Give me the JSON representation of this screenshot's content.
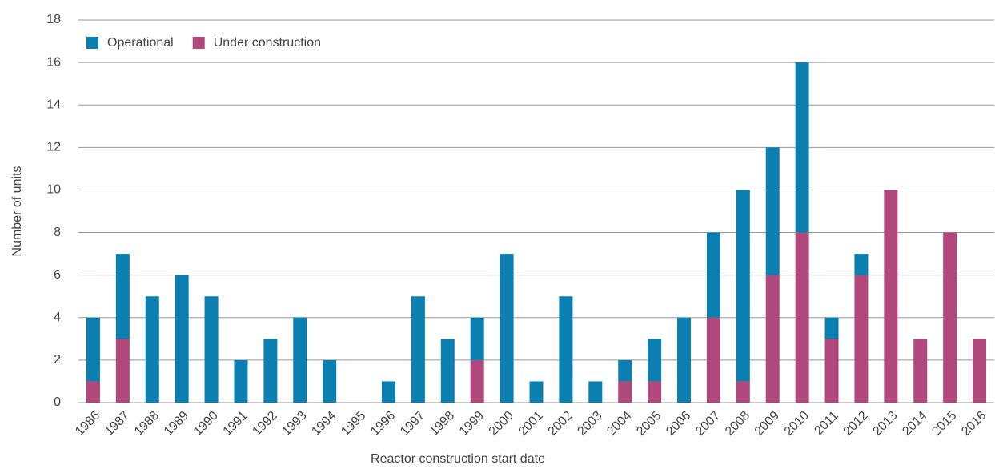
{
  "chart_data": {
    "type": "stacked-bar",
    "x_label": "Reactor construction start date",
    "y_label": "Number of units",
    "categories": [
      "1986",
      "1987",
      "1988",
      "1989",
      "1990",
      "1991",
      "1992",
      "1993",
      "1994",
      "1995",
      "1996",
      "1997",
      "1998",
      "1999",
      "2000",
      "2001",
      "2002",
      "2003",
      "2004",
      "2005",
      "2006",
      "2007",
      "2008",
      "2009",
      "2010",
      "2011",
      "2012",
      "2013",
      "2014",
      "2015",
      "2016"
    ],
    "series": [
      {
        "name": "Operational",
        "color": "#0b7fb0",
        "values": [
          3,
          4,
          5,
          6,
          5,
          2,
          3,
          4,
          2,
          0,
          1,
          5,
          3,
          2,
          7,
          1,
          5,
          1,
          1,
          2,
          4,
          4,
          9,
          6,
          8,
          1,
          1,
          0,
          0,
          0,
          0
        ]
      },
      {
        "name": "Under construction",
        "color": "#b0487b",
        "values": [
          1,
          3,
          0,
          0,
          0,
          0,
          0,
          0,
          0,
          0,
          0,
          0,
          0,
          2,
          0,
          0,
          0,
          0,
          1,
          1,
          0,
          4,
          1,
          6,
          8,
          3,
          6,
          10,
          3,
          8,
          3
        ]
      }
    ],
    "ylim": [
      0,
      18
    ],
    "yticks": [
      0,
      2,
      4,
      6,
      8,
      10,
      12,
      14,
      16,
      18
    ],
    "grid": true,
    "legend": "top-left"
  }
}
